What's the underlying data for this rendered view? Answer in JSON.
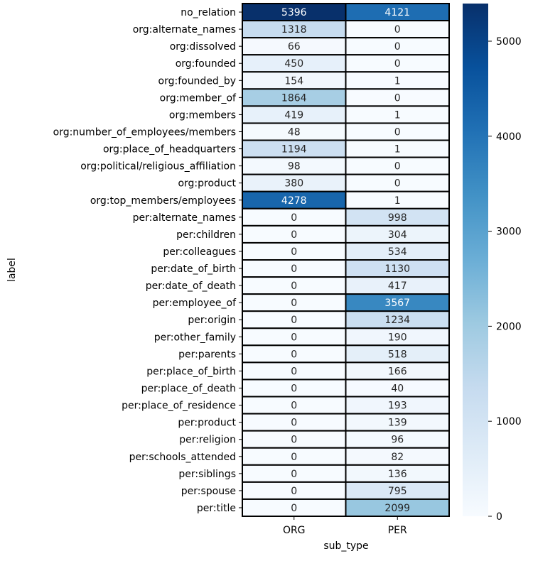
{
  "chart_data": {
    "type": "heatmap",
    "xlabel": "sub_type",
    "ylabel": "label",
    "columns": [
      "ORG",
      "PER"
    ],
    "rows": [
      "no_relation",
      "org:alternate_names",
      "org:dissolved",
      "org:founded",
      "org:founded_by",
      "org:member_of",
      "org:members",
      "org:number_of_employees/members",
      "org:place_of_headquarters",
      "org:political/religious_affiliation",
      "org:product",
      "org:top_members/employees",
      "per:alternate_names",
      "per:children",
      "per:colleagues",
      "per:date_of_birth",
      "per:date_of_death",
      "per:employee_of",
      "per:origin",
      "per:other_family",
      "per:parents",
      "per:place_of_birth",
      "per:place_of_death",
      "per:place_of_residence",
      "per:product",
      "per:religion",
      "per:schools_attended",
      "per:siblings",
      "per:spouse",
      "per:title"
    ],
    "values": [
      [
        5396,
        4121
      ],
      [
        1318,
        0
      ],
      [
        66,
        0
      ],
      [
        450,
        0
      ],
      [
        154,
        1
      ],
      [
        1864,
        0
      ],
      [
        419,
        1
      ],
      [
        48,
        0
      ],
      [
        1194,
        1
      ],
      [
        98,
        0
      ],
      [
        380,
        0
      ],
      [
        4278,
        1
      ],
      [
        0,
        998
      ],
      [
        0,
        304
      ],
      [
        0,
        534
      ],
      [
        0,
        1130
      ],
      [
        0,
        417
      ],
      [
        0,
        3567
      ],
      [
        0,
        1234
      ],
      [
        0,
        190
      ],
      [
        0,
        518
      ],
      [
        0,
        166
      ],
      [
        0,
        40
      ],
      [
        0,
        193
      ],
      [
        0,
        139
      ],
      [
        0,
        96
      ],
      [
        0,
        82
      ],
      [
        0,
        136
      ],
      [
        0,
        795
      ],
      [
        0,
        2099
      ]
    ],
    "colorbar": {
      "colormap": "Blues",
      "min": 0,
      "max": 5396,
      "ticks": [
        0,
        1000,
        2000,
        3000,
        4000,
        5000
      ]
    },
    "cell_border_color": "#000000"
  }
}
